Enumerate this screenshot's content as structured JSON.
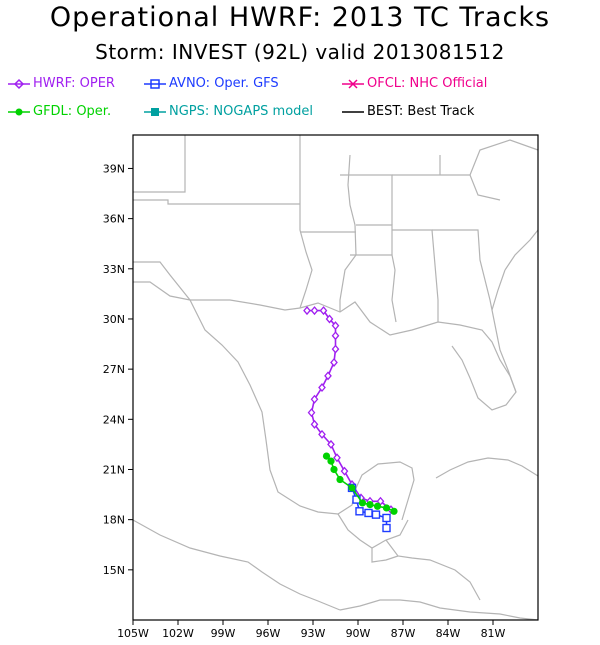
{
  "header": {
    "title": "Operational HWRF: 2013 TC Tracks",
    "subtitle": "Storm: INVEST (92L) valid 2013081512"
  },
  "legend": [
    {
      "key": "hwrf",
      "label": "HWRF: OPER",
      "color": "#a020f0",
      "marker": "diamond"
    },
    {
      "key": "avno",
      "label": "AVNO: Oper. GFS",
      "color": "#1e3cff",
      "marker": "square"
    },
    {
      "key": "ofcl",
      "label": "OFCL: NHC Official",
      "color": "#f0008c",
      "marker": "x"
    },
    {
      "key": "gfdl",
      "label": "GFDL: Oper.",
      "color": "#00d200",
      "marker": "circle"
    },
    {
      "key": "ngps",
      "label": "NGPS: NOGAPS model",
      "color": "#00a0a0",
      "marker": "square"
    },
    {
      "key": "best",
      "label": "BEST: Best Track",
      "color": "#000000",
      "marker": "none"
    }
  ],
  "chart_data": {
    "type": "map",
    "lon_range": [
      -105,
      -78
    ],
    "lat_range": [
      12,
      41
    ],
    "x_ticks": [
      "105W",
      "102W",
      "99W",
      "96W",
      "93W",
      "90W",
      "87W",
      "84W",
      "81W"
    ],
    "y_ticks": [
      "39N",
      "36N",
      "33N",
      "30N",
      "27N",
      "24N",
      "21N",
      "18N",
      "15N"
    ],
    "coastline_color": "#b4b4b4",
    "series": [
      {
        "name": "HWRF: OPER",
        "color": "#a020f0",
        "marker": "diamond",
        "points": [
          [
            -87.8,
            18.6
          ],
          [
            -88.5,
            19.1
          ],
          [
            -89.2,
            19.1
          ],
          [
            -89.8,
            19.3
          ],
          [
            -90.4,
            20.1
          ],
          [
            -90.9,
            20.9
          ],
          [
            -91.4,
            21.7
          ],
          [
            -91.8,
            22.5
          ],
          [
            -92.4,
            23.1
          ],
          [
            -92.9,
            23.7
          ],
          [
            -93.1,
            24.4
          ],
          [
            -92.9,
            25.2
          ],
          [
            -92.4,
            25.9
          ],
          [
            -92.0,
            26.6
          ],
          [
            -91.6,
            27.4
          ],
          [
            -91.5,
            28.2
          ],
          [
            -91.5,
            29.0
          ],
          [
            -91.5,
            29.6
          ],
          [
            -91.9,
            30.0
          ],
          [
            -92.3,
            30.5
          ],
          [
            -92.9,
            30.5
          ],
          [
            -93.4,
            30.5
          ]
        ]
      },
      {
        "name": "AVNO: Oper. GFS",
        "color": "#1e3cff",
        "marker": "square",
        "points": [
          [
            -88.1,
            17.5
          ],
          [
            -88.1,
            18.1
          ],
          [
            -88.8,
            18.3
          ],
          [
            -89.3,
            18.4
          ],
          [
            -89.9,
            18.5
          ],
          [
            -90.1,
            19.2
          ],
          [
            -90.4,
            19.9
          ]
        ]
      },
      {
        "name": "GFDL: Oper.",
        "color": "#00d200",
        "marker": "circle",
        "points": [
          [
            -87.6,
            18.5
          ],
          [
            -88.1,
            18.7
          ],
          [
            -88.7,
            18.8
          ],
          [
            -89.2,
            18.9
          ],
          [
            -89.7,
            19.0
          ],
          [
            -90.4,
            19.9
          ],
          [
            -91.2,
            20.4
          ],
          [
            -91.6,
            21.0
          ],
          [
            -91.8,
            21.5
          ],
          [
            -92.1,
            21.8
          ]
        ]
      }
    ]
  }
}
